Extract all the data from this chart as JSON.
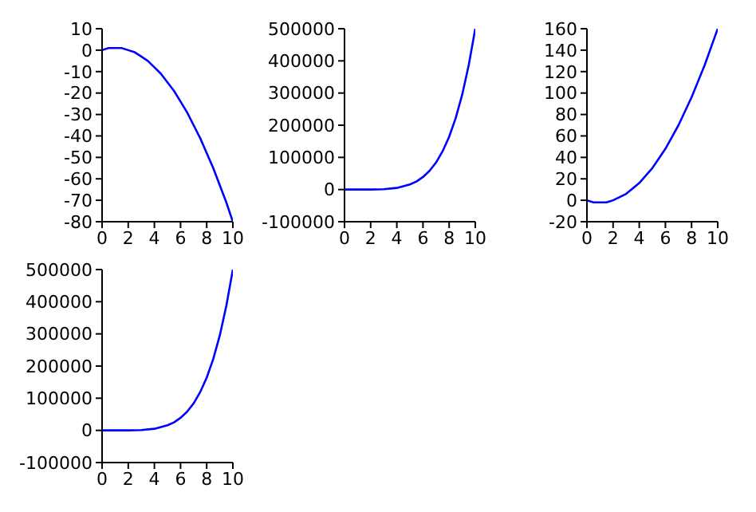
{
  "chart_data": [
    {
      "type": "line",
      "x": [
        0,
        0.5,
        1,
        1.5,
        2,
        2.5,
        3,
        3.5,
        4,
        4.5,
        5,
        5.5,
        6,
        6.5,
        7,
        7.5,
        8,
        8.5,
        9,
        9.5,
        10
      ],
      "values": [
        0,
        1,
        1,
        1,
        0,
        -1,
        -3,
        -5,
        -8,
        -11,
        -15,
        -19,
        -24,
        -29,
        -35,
        -41,
        -48,
        -55,
        -63,
        -71,
        -80
      ],
      "color": "#0000ff",
      "xlim": [
        0,
        10
      ],
      "xticks": [
        0,
        2,
        4,
        6,
        8,
        10
      ],
      "ylim": [
        -80,
        10
      ],
      "yticks": [
        -80,
        -70,
        -60,
        -50,
        -40,
        -30,
        -20,
        -10,
        0,
        10
      ],
      "grid": false,
      "legend": false
    },
    {
      "type": "line",
      "x": [
        0,
        1,
        2,
        3,
        4,
        5,
        5.5,
        6,
        6.5,
        7,
        7.5,
        8,
        8.5,
        9,
        9.5,
        10
      ],
      "values": [
        0,
        0,
        0,
        1000,
        5000,
        16000,
        25000,
        39000,
        58000,
        84000,
        119000,
        164000,
        222000,
        295000,
        387000,
        500000
      ],
      "color": "#0000ff",
      "xlim": [
        0,
        10
      ],
      "xticks": [
        0,
        2,
        4,
        6,
        8,
        10
      ],
      "ylim": [
        -100000,
        500000
      ],
      "yticks": [
        -100000,
        0,
        100000,
        200000,
        300000,
        400000,
        500000
      ],
      "grid": false,
      "legend": false
    },
    {
      "type": "line",
      "x": [
        0,
        0.5,
        1,
        1.5,
        2,
        2.5,
        3,
        3.5,
        4,
        4.5,
        5,
        5.5,
        6,
        6.5,
        7,
        7.5,
        8,
        8.5,
        9,
        9.5,
        10
      ],
      "values": [
        0,
        -2,
        -2,
        -2,
        0,
        3,
        6,
        11,
        16,
        23,
        30,
        39,
        48,
        59,
        70,
        83,
        96,
        111,
        126,
        143,
        160
      ],
      "color": "#0000ff",
      "xlim": [
        0,
        10
      ],
      "xticks": [
        0,
        2,
        4,
        6,
        8,
        10
      ],
      "ylim": [
        -20,
        160
      ],
      "yticks": [
        -20,
        0,
        20,
        40,
        60,
        80,
        100,
        120,
        140,
        160
      ],
      "grid": false,
      "legend": false
    },
    {
      "type": "line",
      "x": [
        0,
        1,
        2,
        3,
        4,
        5,
        5.5,
        6,
        6.5,
        7,
        7.5,
        8,
        8.5,
        9,
        9.5,
        10
      ],
      "values": [
        0,
        0,
        0,
        1000,
        5000,
        16000,
        25000,
        39000,
        58000,
        84000,
        119000,
        164000,
        222000,
        295000,
        387000,
        500000
      ],
      "color": "#0000ff",
      "xlim": [
        0,
        10
      ],
      "xticks": [
        0,
        2,
        4,
        6,
        8,
        10
      ],
      "ylim": [
        -100000,
        500000
      ],
      "yticks": [
        -100000,
        0,
        100000,
        200000,
        300000,
        400000,
        500000
      ],
      "grid": false,
      "legend": false
    }
  ]
}
